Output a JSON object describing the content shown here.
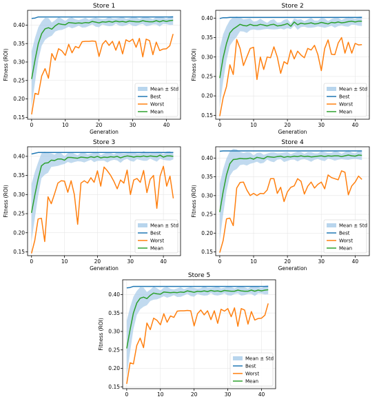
{
  "colors": {
    "best": "#1f77b4",
    "worst": "#ff7f0e",
    "mean": "#2ca02c",
    "band": "#a6cbe8"
  },
  "legend_labels": {
    "band": "Mean ± Std",
    "best": "Best",
    "worst": "Worst",
    "mean": "Mean"
  },
  "chart_data": [
    {
      "type": "line",
      "title": "Store 1",
      "xlabel": "Generation",
      "ylabel": "Fitness (ROI)",
      "xlim": [
        -1.2,
        44.2
      ],
      "ylim": [
        0.145,
        0.44
      ],
      "xticks": [
        0,
        10,
        20,
        30,
        40
      ],
      "yticks": [
        0.15,
        0.2,
        0.25,
        0.3,
        0.35,
        0.4
      ],
      "grid": true,
      "legend": "bottom-right",
      "series": [
        {
          "name": "Best",
          "values": [
            0.418,
            0.419,
            0.422,
            0.422,
            0.422,
            0.422,
            0.422,
            0.422,
            0.422,
            0.422,
            0.422,
            0.422,
            0.422,
            0.422,
            0.422,
            0.422,
            0.422,
            0.422,
            0.422,
            0.422,
            0.422,
            0.422,
            0.422,
            0.422,
            0.422,
            0.422,
            0.422,
            0.422,
            0.422,
            0.422,
            0.422,
            0.422,
            0.422,
            0.422,
            0.422,
            0.422,
            0.422,
            0.422,
            0.422,
            0.422,
            0.422,
            0.422,
            0.422
          ]
        },
        {
          "name": "Worst",
          "values": [
            0.158,
            0.215,
            0.212,
            0.262,
            0.282,
            0.256,
            0.323,
            0.305,
            0.336,
            0.33,
            0.318,
            0.348,
            0.325,
            0.342,
            0.338,
            0.355,
            0.356,
            0.356,
            0.357,
            0.356,
            0.315,
            0.348,
            0.358,
            0.345,
            0.356,
            0.332,
            0.356,
            0.322,
            0.36,
            0.355,
            0.362,
            0.34,
            0.364,
            0.314,
            0.362,
            0.358,
            0.32,
            0.354,
            0.331,
            0.335,
            0.336,
            0.344,
            0.376
          ]
        },
        {
          "name": "Mean",
          "values": [
            0.254,
            0.305,
            0.35,
            0.377,
            0.39,
            0.393,
            0.389,
            0.398,
            0.404,
            0.402,
            0.401,
            0.407,
            0.406,
            0.405,
            0.406,
            0.405,
            0.407,
            0.406,
            0.41,
            0.408,
            0.406,
            0.409,
            0.408,
            0.41,
            0.408,
            0.411,
            0.409,
            0.41,
            0.408,
            0.411,
            0.41,
            0.409,
            0.409,
            0.412,
            0.41,
            0.409,
            0.409,
            0.412,
            0.409,
            0.412,
            0.41,
            0.412,
            0.413
          ]
        }
      ]
    },
    {
      "type": "line",
      "title": "Store 2",
      "xlabel": "Generation",
      "ylabel": "Fitness (ROI)",
      "xlim": [
        -1.2,
        44.2
      ],
      "ylim": [
        0.14,
        0.42
      ],
      "xticks": [
        0,
        10,
        20,
        30,
        40
      ],
      "yticks": [
        0.15,
        0.2,
        0.25,
        0.3,
        0.35,
        0.4
      ],
      "grid": true,
      "legend": "bottom-right",
      "series": [
        {
          "name": "Best",
          "values": [
            0.399,
            0.401,
            0.401,
            0.402,
            0.402,
            0.402,
            0.402,
            0.402,
            0.402,
            0.402,
            0.402,
            0.402,
            0.402,
            0.402,
            0.402,
            0.402,
            0.402,
            0.402,
            0.402,
            0.402,
            0.402,
            0.402,
            0.402,
            0.402,
            0.402,
            0.402,
            0.402,
            0.402,
            0.402,
            0.402,
            0.402,
            0.402,
            0.402,
            0.402,
            0.402,
            0.402,
            0.402,
            0.402,
            0.402,
            0.402,
            0.402,
            0.402,
            0.402
          ]
        },
        {
          "name": "Worst",
          "values": [
            0.148,
            0.195,
            0.224,
            0.28,
            0.255,
            0.345,
            0.322,
            0.278,
            0.3,
            0.322,
            0.325,
            0.242,
            0.3,
            0.268,
            0.3,
            0.298,
            0.326,
            0.3,
            0.258,
            0.288,
            0.282,
            0.318,
            0.295,
            0.315,
            0.305,
            0.298,
            0.322,
            0.318,
            0.33,
            0.306,
            0.265,
            0.322,
            0.344,
            0.307,
            0.306,
            0.336,
            0.35,
            0.31,
            0.338,
            0.31,
            0.335,
            0.331,
            0.332
          ]
        },
        {
          "name": "Mean",
          "values": [
            0.246,
            0.298,
            0.335,
            0.362,
            0.372,
            0.378,
            0.384,
            0.381,
            0.38,
            0.384,
            0.381,
            0.381,
            0.384,
            0.382,
            0.38,
            0.383,
            0.384,
            0.38,
            0.381,
            0.383,
            0.386,
            0.379,
            0.39,
            0.383,
            0.387,
            0.385,
            0.386,
            0.388,
            0.385,
            0.386,
            0.389,
            0.387,
            0.385,
            0.389,
            0.388,
            0.39,
            0.388,
            0.389,
            0.391,
            0.392,
            0.39,
            0.392,
            0.392
          ]
        }
      ]
    },
    {
      "type": "line",
      "title": "Store 3",
      "xlabel": "Generation",
      "ylabel": "Fitness (ROI)",
      "xlim": [
        -1.2,
        45.2
      ],
      "ylim": [
        0.14,
        0.425
      ],
      "xticks": [
        0,
        10,
        20,
        30,
        40
      ],
      "yticks": [
        0.15,
        0.2,
        0.25,
        0.3,
        0.35,
        0.4
      ],
      "grid": true,
      "legend": "bottom-right",
      "series": [
        {
          "name": "Best",
          "values": [
            0.406,
            0.408,
            0.41,
            0.41,
            0.41,
            0.41,
            0.41,
            0.41,
            0.41,
            0.41,
            0.41,
            0.41,
            0.41,
            0.41,
            0.41,
            0.41,
            0.41,
            0.41,
            0.41,
            0.41,
            0.41,
            0.41,
            0.41,
            0.41,
            0.41,
            0.41,
            0.41,
            0.41,
            0.41,
            0.41,
            0.41,
            0.41,
            0.41,
            0.41,
            0.41,
            0.41,
            0.41,
            0.41,
            0.41,
            0.41,
            0.41,
            0.41,
            0.41,
            0.41
          ]
        },
        {
          "name": "Worst",
          "values": [
            0.146,
            0.18,
            0.236,
            0.238,
            0.177,
            0.294,
            0.276,
            0.302,
            0.33,
            0.336,
            0.335,
            0.306,
            0.336,
            0.3,
            0.222,
            0.33,
            0.336,
            0.33,
            0.344,
            0.332,
            0.362,
            0.322,
            0.372,
            0.362,
            0.35,
            0.334,
            0.315,
            0.338,
            0.33,
            0.364,
            0.3,
            0.338,
            0.342,
            0.332,
            0.363,
            0.305,
            0.34,
            0.35,
            0.264,
            0.348,
            0.374,
            0.322,
            0.348,
            0.29
          ]
        },
        {
          "name": "Mean",
          "values": [
            0.252,
            0.298,
            0.34,
            0.375,
            0.382,
            0.383,
            0.39,
            0.389,
            0.393,
            0.393,
            0.39,
            0.397,
            0.397,
            0.396,
            0.395,
            0.398,
            0.397,
            0.396,
            0.399,
            0.397,
            0.4,
            0.396,
            0.398,
            0.397,
            0.399,
            0.398,
            0.4,
            0.396,
            0.399,
            0.401,
            0.4,
            0.398,
            0.4,
            0.399,
            0.401,
            0.399,
            0.401,
            0.4,
            0.399,
            0.403,
            0.398,
            0.401,
            0.401,
            0.4
          ]
        }
      ]
    },
    {
      "type": "line",
      "title": "Store 4",
      "xlabel": "Generation",
      "ylabel": "Fitness (ROI)",
      "xlim": [
        -1.2,
        44.2
      ],
      "ylim": [
        0.14,
        0.43
      ],
      "xticks": [
        0,
        10,
        20,
        30,
        40
      ],
      "yticks": [
        0.15,
        0.2,
        0.25,
        0.3,
        0.35,
        0.4
      ],
      "grid": true,
      "legend": "bottom-right",
      "series": [
        {
          "name": "Best",
          "values": [
            0.418,
            0.419,
            0.419,
            0.419,
            0.419,
            0.419,
            0.419,
            0.419,
            0.419,
            0.419,
            0.419,
            0.419,
            0.419,
            0.419,
            0.419,
            0.419,
            0.419,
            0.419,
            0.419,
            0.419,
            0.419,
            0.419,
            0.419,
            0.419,
            0.419,
            0.419,
            0.419,
            0.419,
            0.419,
            0.419,
            0.419,
            0.419,
            0.419,
            0.419,
            0.419,
            0.419,
            0.419,
            0.419,
            0.419,
            0.419,
            0.419,
            0.419,
            0.419
          ]
        },
        {
          "name": "Worst",
          "values": [
            0.148,
            0.18,
            0.238,
            0.24,
            0.22,
            0.32,
            0.335,
            0.336,
            0.315,
            0.3,
            0.306,
            0.3,
            0.306,
            0.305,
            0.315,
            0.345,
            0.345,
            0.306,
            0.322,
            0.284,
            0.31,
            0.322,
            0.326,
            0.345,
            0.338,
            0.304,
            0.325,
            0.336,
            0.32,
            0.33,
            0.336,
            0.318,
            0.355,
            0.348,
            0.345,
            0.342,
            0.366,
            0.362,
            0.302,
            0.326,
            0.336,
            0.352,
            0.343
          ]
        },
        {
          "name": "Mean",
          "values": [
            0.256,
            0.31,
            0.355,
            0.385,
            0.396,
            0.397,
            0.399,
            0.398,
            0.398,
            0.4,
            0.397,
            0.402,
            0.4,
            0.398,
            0.404,
            0.403,
            0.402,
            0.404,
            0.405,
            0.402,
            0.404,
            0.403,
            0.405,
            0.404,
            0.406,
            0.404,
            0.405,
            0.403,
            0.404,
            0.405,
            0.406,
            0.404,
            0.406,
            0.405,
            0.406,
            0.406,
            0.404,
            0.406,
            0.408,
            0.406,
            0.405,
            0.408,
            0.407
          ]
        }
      ]
    },
    {
      "type": "line",
      "title": "Store 5",
      "xlabel": "Generation",
      "ylabel": "Fitness (ROI)",
      "xlim": [
        -1.2,
        44.2
      ],
      "ylim": [
        0.145,
        0.44
      ],
      "xticks": [
        0,
        10,
        20,
        30,
        40
      ],
      "yticks": [
        0.15,
        0.2,
        0.25,
        0.3,
        0.35,
        0.4
      ],
      "grid": true,
      "legend": "bottom-right",
      "series": [
        {
          "name": "Best",
          "values": [
            0.418,
            0.419,
            0.422,
            0.422,
            0.422,
            0.422,
            0.422,
            0.422,
            0.422,
            0.422,
            0.422,
            0.422,
            0.422,
            0.422,
            0.422,
            0.422,
            0.422,
            0.422,
            0.422,
            0.422,
            0.422,
            0.422,
            0.422,
            0.422,
            0.422,
            0.422,
            0.422,
            0.422,
            0.422,
            0.422,
            0.422,
            0.422,
            0.422,
            0.422,
            0.422,
            0.422,
            0.422,
            0.422,
            0.422,
            0.422,
            0.422,
            0.422,
            0.422
          ]
        },
        {
          "name": "Worst",
          "values": [
            0.158,
            0.215,
            0.212,
            0.262,
            0.282,
            0.256,
            0.323,
            0.305,
            0.336,
            0.33,
            0.318,
            0.348,
            0.325,
            0.342,
            0.338,
            0.355,
            0.356,
            0.356,
            0.357,
            0.356,
            0.315,
            0.348,
            0.358,
            0.345,
            0.356,
            0.332,
            0.356,
            0.322,
            0.36,
            0.355,
            0.362,
            0.34,
            0.364,
            0.314,
            0.362,
            0.358,
            0.32,
            0.354,
            0.331,
            0.335,
            0.336,
            0.344,
            0.376
          ]
        },
        {
          "name": "Mean",
          "values": [
            0.254,
            0.305,
            0.35,
            0.377,
            0.39,
            0.393,
            0.389,
            0.398,
            0.404,
            0.402,
            0.401,
            0.407,
            0.406,
            0.405,
            0.406,
            0.405,
            0.407,
            0.406,
            0.41,
            0.408,
            0.406,
            0.409,
            0.408,
            0.41,
            0.408,
            0.411,
            0.409,
            0.41,
            0.408,
            0.411,
            0.41,
            0.409,
            0.409,
            0.412,
            0.41,
            0.409,
            0.409,
            0.412,
            0.409,
            0.412,
            0.41,
            0.412,
            0.413
          ]
        }
      ]
    }
  ]
}
